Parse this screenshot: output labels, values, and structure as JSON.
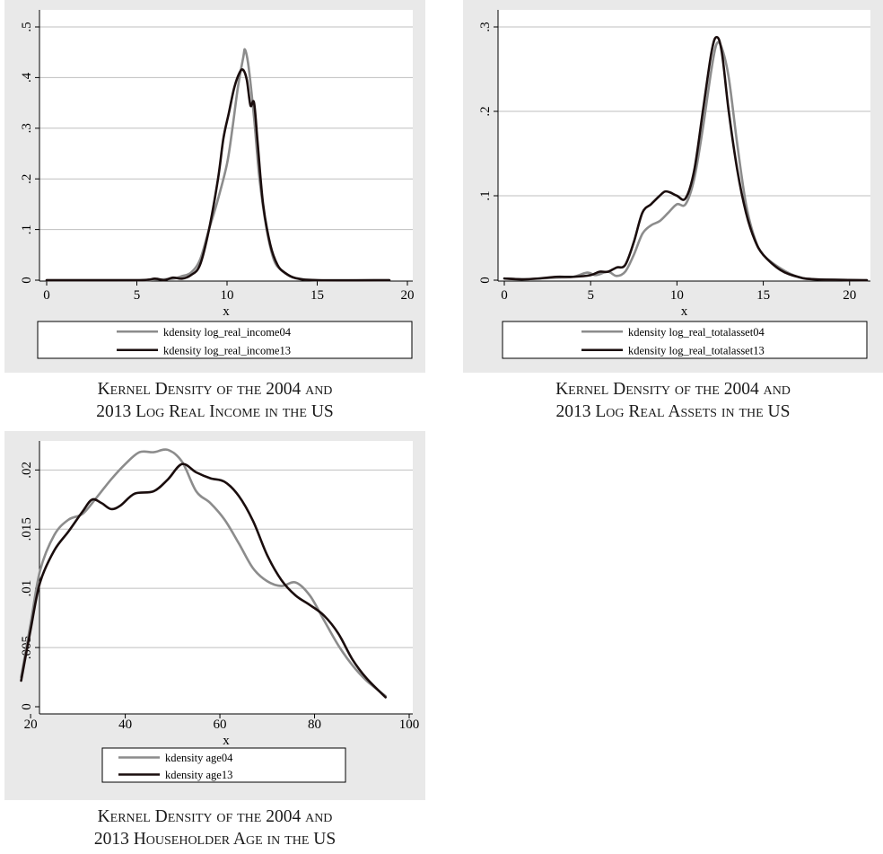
{
  "chart_data": [
    {
      "type": "line",
      "xlabel": "x",
      "ylabel": "",
      "xlim": [
        0,
        20
      ],
      "ylim": [
        0,
        0.5
      ],
      "xticks": [
        0,
        5,
        10,
        15,
        20
      ],
      "xtick_labels": [
        "0",
        "5",
        "10",
        "15",
        "20"
      ],
      "yticks": [
        0,
        0.1,
        0.2,
        0.3,
        0.4,
        0.5
      ],
      "ytick_labels": [
        "0",
        ".1",
        ".2",
        ".3",
        ".4",
        ".5"
      ],
      "grid": true,
      "legend_position": "bottom",
      "series": [
        {
          "name": "kdensity log_real_income04",
          "color": "#8c8c8c",
          "points": [
            [
              0,
              0
            ],
            [
              5,
              0
            ],
            [
              6,
              0.001
            ],
            [
              7,
              0.003
            ],
            [
              7.5,
              0.008
            ],
            [
              8,
              0.015
            ],
            [
              8.5,
              0.04
            ],
            [
              9,
              0.1
            ],
            [
              9.5,
              0.16
            ],
            [
              10,
              0.23
            ],
            [
              10.3,
              0.3
            ],
            [
              10.6,
              0.38
            ],
            [
              10.9,
              0.44
            ],
            [
              11,
              0.455
            ],
            [
              11.2,
              0.42
            ],
            [
              11.5,
              0.32
            ],
            [
              11.8,
              0.2
            ],
            [
              12.2,
              0.1
            ],
            [
              12.6,
              0.04
            ],
            [
              13,
              0.02
            ],
            [
              13.5,
              0.008
            ],
            [
              14,
              0.003
            ],
            [
              15,
              0
            ],
            [
              19,
              0
            ]
          ]
        },
        {
          "name": "kdensity log_real_income13",
          "color": "#1a0d0d",
          "points": [
            [
              0,
              0
            ],
            [
              5,
              0
            ],
            [
              6,
              0.003
            ],
            [
              6.5,
              0
            ],
            [
              7,
              0.005
            ],
            [
              7.5,
              0.003
            ],
            [
              8,
              0.01
            ],
            [
              8.5,
              0.03
            ],
            [
              9,
              0.1
            ],
            [
              9.5,
              0.2
            ],
            [
              9.8,
              0.28
            ],
            [
              10.1,
              0.33
            ],
            [
              10.4,
              0.38
            ],
            [
              10.7,
              0.41
            ],
            [
              10.9,
              0.415
            ],
            [
              11.1,
              0.395
            ],
            [
              11.3,
              0.345
            ],
            [
              11.5,
              0.35
            ],
            [
              11.7,
              0.27
            ],
            [
              12,
              0.15
            ],
            [
              12.4,
              0.07
            ],
            [
              12.8,
              0.03
            ],
            [
              13.2,
              0.015
            ],
            [
              13.8,
              0.004
            ],
            [
              15,
              0
            ],
            [
              19,
              0
            ]
          ]
        }
      ]
    },
    {
      "type": "line",
      "xlabel": "x",
      "ylabel": "",
      "xlim": [
        0,
        21
      ],
      "ylim": [
        0,
        0.3
      ],
      "xticks": [
        0,
        5,
        10,
        15,
        20
      ],
      "xtick_labels": [
        "0",
        "5",
        "10",
        "15",
        "20"
      ],
      "yticks": [
        0,
        0.1,
        0.2,
        0.3
      ],
      "ytick_labels": [
        "0",
        ".1",
        ".2",
        ".3"
      ],
      "grid": true,
      "legend_position": "bottom",
      "series": [
        {
          "name": "kdensity log_real_totalasset04",
          "color": "#8c8c8c",
          "points": [
            [
              0,
              0.002
            ],
            [
              1,
              0.001
            ],
            [
              2,
              0.002
            ],
            [
              3,
              0.003
            ],
            [
              4,
              0.004
            ],
            [
              4.8,
              0.009
            ],
            [
              5.3,
              0.006
            ],
            [
              6,
              0.01
            ],
            [
              6.5,
              0.005
            ],
            [
              7,
              0.01
            ],
            [
              7.5,
              0.03
            ],
            [
              8,
              0.055
            ],
            [
              8.5,
              0.065
            ],
            [
              9,
              0.07
            ],
            [
              9.5,
              0.08
            ],
            [
              10,
              0.09
            ],
            [
              10.5,
              0.09
            ],
            [
              11,
              0.12
            ],
            [
              11.5,
              0.18
            ],
            [
              12,
              0.25
            ],
            [
              12.3,
              0.28
            ],
            [
              12.6,
              0.275
            ],
            [
              13,
              0.24
            ],
            [
              13.5,
              0.16
            ],
            [
              14,
              0.09
            ],
            [
              14.5,
              0.05
            ],
            [
              15,
              0.03
            ],
            [
              16,
              0.014
            ],
            [
              17,
              0.004
            ],
            [
              18,
              0.001
            ],
            [
              21,
              0
            ]
          ]
        },
        {
          "name": "kdensity log_real_totalasset13",
          "color": "#1a0d0d",
          "points": [
            [
              0,
              0.002
            ],
            [
              1,
              0.001
            ],
            [
              2,
              0.002
            ],
            [
              3,
              0.004
            ],
            [
              4,
              0.004
            ],
            [
              5,
              0.006
            ],
            [
              5.5,
              0.01
            ],
            [
              6,
              0.01
            ],
            [
              6.5,
              0.015
            ],
            [
              7,
              0.018
            ],
            [
              7.5,
              0.045
            ],
            [
              8,
              0.08
            ],
            [
              8.5,
              0.09
            ],
            [
              9,
              0.1
            ],
            [
              9.3,
              0.105
            ],
            [
              9.6,
              0.104
            ],
            [
              10,
              0.1
            ],
            [
              10.5,
              0.097
            ],
            [
              11,
              0.13
            ],
            [
              11.5,
              0.2
            ],
            [
              12,
              0.27
            ],
            [
              12.3,
              0.288
            ],
            [
              12.6,
              0.27
            ],
            [
              13,
              0.2
            ],
            [
              13.5,
              0.13
            ],
            [
              14,
              0.08
            ],
            [
              14.5,
              0.048
            ],
            [
              15,
              0.03
            ],
            [
              16,
              0.012
            ],
            [
              17,
              0.004
            ],
            [
              18,
              0.001
            ],
            [
              21,
              0
            ]
          ]
        }
      ]
    },
    {
      "type": "line",
      "xlabel": "x",
      "ylabel": "",
      "xlim": [
        16,
        100
      ],
      "ylim": [
        0,
        0.022
      ],
      "xticks": [
        20,
        40,
        60,
        80,
        100
      ],
      "xtick_labels": [
        "20",
        "40",
        "60",
        "80",
        "100"
      ],
      "yticks": [
        0,
        0.005,
        0.01,
        0.015,
        0.02
      ],
      "ytick_labels": [
        "0",
        ".005",
        ".01",
        ".015",
        ".02"
      ],
      "grid": true,
      "legend_position": "bottom",
      "series": [
        {
          "name": "kdensity age04",
          "color": "#8c8c8c",
          "points": [
            [
              18,
              0.0025
            ],
            [
              20,
              0.007
            ],
            [
              22,
              0.0115
            ],
            [
              25,
              0.0145
            ],
            [
              28,
              0.0158
            ],
            [
              31,
              0.0163
            ],
            [
              34,
              0.0177
            ],
            [
              37,
              0.0192
            ],
            [
              40,
              0.0205
            ],
            [
              43,
              0.0215
            ],
            [
              46,
              0.0215
            ],
            [
              49,
              0.0217
            ],
            [
              52,
              0.0207
            ],
            [
              55,
              0.0182
            ],
            [
              58,
              0.0172
            ],
            [
              61,
              0.0158
            ],
            [
              64,
              0.0138
            ],
            [
              67,
              0.0117
            ],
            [
              70,
              0.0106
            ],
            [
              73,
              0.0102
            ],
            [
              76,
              0.0105
            ],
            [
              79,
              0.0094
            ],
            [
              82,
              0.0073
            ],
            [
              85,
              0.0052
            ],
            [
              88,
              0.0035
            ],
            [
              91,
              0.0022
            ],
            [
              95,
              0.0009
            ]
          ]
        },
        {
          "name": "kdensity age13",
          "color": "#1a0d0d",
          "points": [
            [
              18,
              0.0022
            ],
            [
              20,
              0.0065
            ],
            [
              22,
              0.0105
            ],
            [
              25,
              0.0132
            ],
            [
              28,
              0.0148
            ],
            [
              31,
              0.0165
            ],
            [
              33,
              0.0175
            ],
            [
              35,
              0.0172
            ],
            [
              37,
              0.0167
            ],
            [
              39,
              0.017
            ],
            [
              42,
              0.018
            ],
            [
              46,
              0.0182
            ],
            [
              49,
              0.0192
            ],
            [
              52,
              0.0205
            ],
            [
              55,
              0.0198
            ],
            [
              58,
              0.0193
            ],
            [
              61,
              0.019
            ],
            [
              64,
              0.0178
            ],
            [
              67,
              0.0157
            ],
            [
              70,
              0.0128
            ],
            [
              73,
              0.0107
            ],
            [
              76,
              0.0094
            ],
            [
              79,
              0.0086
            ],
            [
              82,
              0.0077
            ],
            [
              85,
              0.0062
            ],
            [
              88,
              0.004
            ],
            [
              91,
              0.0024
            ],
            [
              95,
              0.0008
            ]
          ]
        }
      ]
    }
  ],
  "captions": [
    {
      "line1": "Kernel Density of the 2004 and",
      "line2": "2013 Log Real Income in the US"
    },
    {
      "line1": "Kernel Density of the 2004 and",
      "line2": "2013 Log Real Assets in the US"
    },
    {
      "line1": "Kernel Density of the 2004 and",
      "line2": "2013 Householder Age in the US"
    }
  ]
}
